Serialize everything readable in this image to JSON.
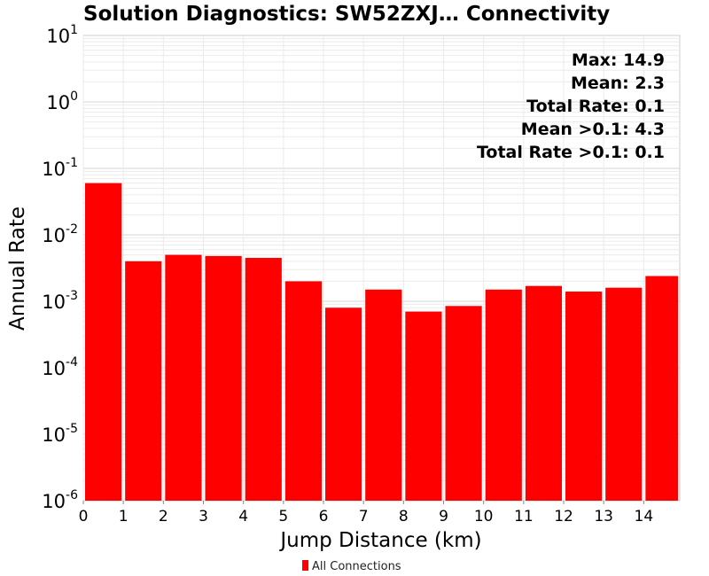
{
  "chart_data": {
    "type": "bar",
    "title": "Solution Diagnostics: SW52ZXJ… Connectivity",
    "xlabel": "Jump Distance (km)",
    "ylabel": "Annual Rate",
    "y_scale": "log",
    "ylim": [
      1e-06,
      10
    ],
    "xlim": [
      0,
      14.9
    ],
    "x_ticks": [
      0,
      1,
      2,
      3,
      4,
      5,
      6,
      7,
      8,
      9,
      10,
      11,
      12,
      13,
      14
    ],
    "y_ticks": [
      {
        "base": "10",
        "exp": "1",
        "value": 10
      },
      {
        "base": "10",
        "exp": "0",
        "value": 1
      },
      {
        "base": "10",
        "exp": "-1",
        "value": 0.1
      },
      {
        "base": "10",
        "exp": "-2",
        "value": 0.01
      },
      {
        "base": "10",
        "exp": "-3",
        "value": 0.001
      },
      {
        "base": "10",
        "exp": "-4",
        "value": 0.0001
      },
      {
        "base": "10",
        "exp": "-5",
        "value": 1e-05
      },
      {
        "base": "10",
        "exp": "-6",
        "value": 1e-06
      }
    ],
    "grid": true,
    "bins": [
      {
        "start": 0,
        "end": 1,
        "value": 0.06
      },
      {
        "start": 1,
        "end": 2,
        "value": 0.004
      },
      {
        "start": 2,
        "end": 3,
        "value": 0.005
      },
      {
        "start": 3,
        "end": 4,
        "value": 0.0048
      },
      {
        "start": 4,
        "end": 5,
        "value": 0.0045
      },
      {
        "start": 5,
        "end": 6,
        "value": 0.002
      },
      {
        "start": 6,
        "end": 7,
        "value": 0.0008
      },
      {
        "start": 7,
        "end": 8,
        "value": 0.0015
      },
      {
        "start": 8,
        "end": 9,
        "value": 0.0007
      },
      {
        "start": 9,
        "end": 10,
        "value": 0.00085
      },
      {
        "start": 10,
        "end": 11,
        "value": 0.0015
      },
      {
        "start": 11,
        "end": 12,
        "value": 0.0017
      },
      {
        "start": 12,
        "end": 13,
        "value": 0.0014
      },
      {
        "start": 13,
        "end": 14,
        "value": 0.0016
      },
      {
        "start": 14,
        "end": 14.9,
        "value": 0.0024
      }
    ],
    "bar_color": "#ff0000",
    "stats": [
      "Max: 14.9",
      "Mean: 2.3",
      "Total Rate: 0.1",
      "Mean >0.1: 4.3",
      "Total Rate >0.1: 0.1"
    ],
    "legend": {
      "placement": "bottom-center",
      "label": "All Connections",
      "color": "#ff0000"
    }
  }
}
